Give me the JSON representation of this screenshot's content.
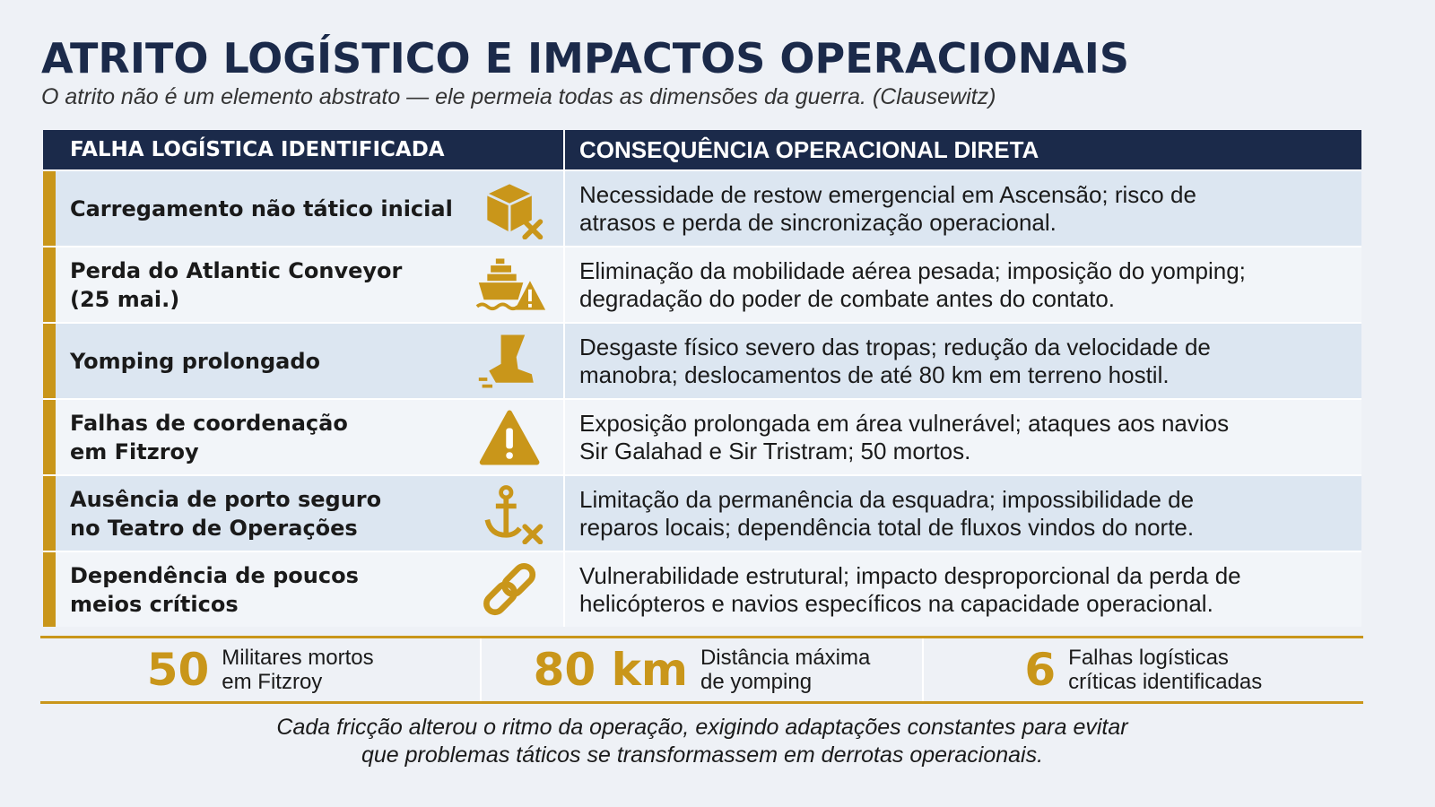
{
  "title": "ATRITO LOGÍSTICO E IMPACTOS OPERACIONAIS",
  "subtitle": "O atrito não é um elemento abstrato — ele permeia todas as dimensões da guerra. (Clausewitz)",
  "colors": {
    "navy": "#1b2a4a",
    "gold": "#c9961a",
    "row_light_blue": "#dce6f1",
    "row_light": "#f2f5f9"
  },
  "table": {
    "headers": [
      "FALHA LOGÍSTICA IDENTIFICADA",
      "CONSEQUÊNCIA OPERACIONAL DIRETA"
    ],
    "rows": [
      {
        "failure": "Carregamento não tático inicial",
        "icon": "box-x-icon",
        "consequence": "Necessidade de restow emergencial em Ascensão; risco de\natrasos e perda de sincronização operacional."
      },
      {
        "failure": "Perda do Atlantic Conveyor\n(25 mai.)",
        "icon": "ship-warning-icon",
        "consequence": "Eliminação da mobilidade aérea pesada; imposição do yomping;\ndegradação do poder de combate antes do contato."
      },
      {
        "failure": "Yomping prolongado",
        "icon": "boot-icon",
        "consequence": "Desgaste físico severo das tropas; redução da velocidade de\nmanobra; deslocamentos de até 80 km em terreno hostil."
      },
      {
        "failure": "Falhas de coordenação\nem Fitzroy",
        "icon": "warning-icon",
        "consequence": "Exposição prolongada em área vulnerável; ataques aos navios\nSir Galahad e Sir Tristram; 50 mortos."
      },
      {
        "failure": "Ausência de porto seguro\nno Teatro de Operações",
        "icon": "anchor-x-icon",
        "consequence": "Limitação da permanência da esquadra; impossibilidade de\nreparos locais; dependência total de fluxos vindos do norte."
      },
      {
        "failure": "Dependência de poucos\nmeios críticos",
        "icon": "chain-link-icon",
        "consequence": "Vulnerabilidade estrutural; impacto desproporcional da perda de\nhelicópteros e navios específicos na capacidade operacional."
      }
    ]
  },
  "stats": [
    {
      "value": "50",
      "label": "Militares mortos\nem Fitzroy"
    },
    {
      "value": "80 km",
      "label": "Distância máxima\nde yomping"
    },
    {
      "value": "6",
      "label": "Falhas logísticas\ncríticas identificadas"
    }
  ],
  "footer": "Cada fricção alterou o ritmo da operação, exigindo adaptações constantes para evitar\nque problemas táticos se transformassem em derrotas operacionais."
}
